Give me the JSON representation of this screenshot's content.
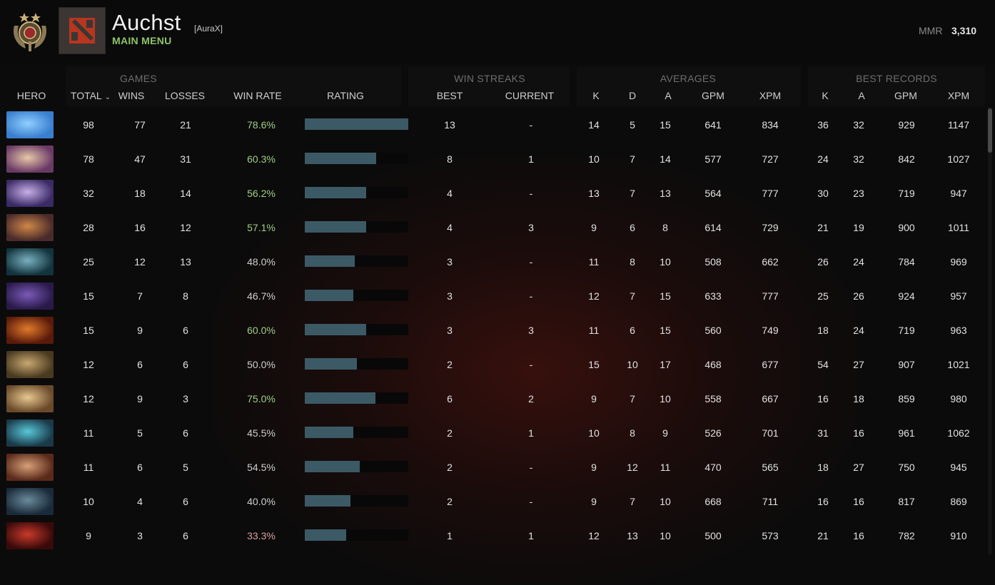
{
  "header": {
    "player_name": "Auchst",
    "team_tag": "[AuraX]",
    "nav_label": "MAIN MENU",
    "mmr_label": "MMR",
    "mmr_value": "3,310"
  },
  "groups": {
    "games": "GAMES",
    "win_streaks": "WIN STREAKS",
    "averages": "AVERAGES",
    "best_records": "BEST RECORDS"
  },
  "columns": {
    "hero": "HERO",
    "total": "TOTAL",
    "wins": "WINS",
    "losses": "LOSSES",
    "win_rate": "WIN RATE",
    "rating": "RATING",
    "best": "BEST",
    "current": "CURRENT",
    "avg_k": "K",
    "avg_d": "D",
    "avg_a": "A",
    "avg_gpm": "GPM",
    "avg_xpm": "XPM",
    "best_k": "K",
    "best_a": "A",
    "best_gpm": "GPM",
    "best_xpm": "XPM"
  },
  "rows": [
    {
      "hero_icon": "blue-hero-portrait-icon",
      "total": "98",
      "wins": "77",
      "losses": "21",
      "win_rate": "78.6%",
      "rating": 1.0,
      "best": "13",
      "current": "-",
      "k": "14",
      "d": "5",
      "a": "15",
      "gpm": "641",
      "xpm": "834",
      "bk": "36",
      "ba": "32",
      "bgpm": "929",
      "bxpm": "1147"
    },
    {
      "hero_icon": "pale-hero-portrait-icon",
      "total": "78",
      "wins": "47",
      "losses": "31",
      "win_rate": "60.3%",
      "rating": 0.69,
      "best": "8",
      "current": "1",
      "k": "10",
      "d": "7",
      "a": "14",
      "gpm": "577",
      "xpm": "727",
      "bk": "24",
      "ba": "32",
      "bgpm": "842",
      "bxpm": "1027"
    },
    {
      "hero_icon": "purple-hero-portrait-icon",
      "total": "32",
      "wins": "18",
      "losses": "14",
      "win_rate": "56.2%",
      "rating": 0.59,
      "best": "4",
      "current": "-",
      "k": "13",
      "d": "7",
      "a": "13",
      "gpm": "564",
      "xpm": "777",
      "bk": "30",
      "ba": "23",
      "bgpm": "719",
      "bxpm": "947"
    },
    {
      "hero_icon": "orange-hero-portrait-icon",
      "total": "28",
      "wins": "16",
      "losses": "12",
      "win_rate": "57.1%",
      "rating": 0.59,
      "best": "4",
      "current": "3",
      "k": "9",
      "d": "6",
      "a": "8",
      "gpm": "614",
      "xpm": "729",
      "bk": "21",
      "ba": "19",
      "bgpm": "900",
      "bxpm": "1011"
    },
    {
      "hero_icon": "teal-hero-portrait-icon",
      "total": "25",
      "wins": "12",
      "losses": "13",
      "win_rate": "48.0%",
      "rating": 0.48,
      "best": "3",
      "current": "-",
      "k": "11",
      "d": "8",
      "a": "10",
      "gpm": "508",
      "xpm": "662",
      "bk": "26",
      "ba": "24",
      "bgpm": "784",
      "bxpm": "969"
    },
    {
      "hero_icon": "violet-hero-portrait-icon",
      "total": "15",
      "wins": "7",
      "losses": "8",
      "win_rate": "46.7%",
      "rating": 0.47,
      "best": "3",
      "current": "-",
      "k": "12",
      "d": "7",
      "a": "15",
      "gpm": "633",
      "xpm": "777",
      "bk": "25",
      "ba": "26",
      "bgpm": "924",
      "bxpm": "957"
    },
    {
      "hero_icon": "fire-hero-portrait-icon",
      "total": "15",
      "wins": "9",
      "losses": "6",
      "win_rate": "60.0%",
      "rating": 0.59,
      "best": "3",
      "current": "3",
      "k": "11",
      "d": "6",
      "a": "15",
      "gpm": "560",
      "xpm": "749",
      "bk": "18",
      "ba": "24",
      "bgpm": "719",
      "bxpm": "963"
    },
    {
      "hero_icon": "tan-hero-portrait-icon",
      "total": "12",
      "wins": "6",
      "losses": "6",
      "win_rate": "50.0%",
      "rating": 0.5,
      "best": "2",
      "current": "-",
      "k": "15",
      "d": "10",
      "a": "17",
      "gpm": "468",
      "xpm": "677",
      "bk": "54",
      "ba": "27",
      "bgpm": "907",
      "bxpm": "1021"
    },
    {
      "hero_icon": "amber-hero-portrait-icon",
      "total": "12",
      "wins": "9",
      "losses": "3",
      "win_rate": "75.0%",
      "rating": 0.68,
      "best": "6",
      "current": "2",
      "k": "9",
      "d": "7",
      "a": "10",
      "gpm": "558",
      "xpm": "667",
      "bk": "16",
      "ba": "18",
      "bgpm": "859",
      "bxpm": "980"
    },
    {
      "hero_icon": "cyan-hero-portrait-icon",
      "total": "11",
      "wins": "5",
      "losses": "6",
      "win_rate": "45.5%",
      "rating": 0.47,
      "best": "2",
      "current": "1",
      "k": "10",
      "d": "8",
      "a": "9",
      "gpm": "526",
      "xpm": "701",
      "bk": "31",
      "ba": "16",
      "bgpm": "961",
      "bxpm": "1062"
    },
    {
      "hero_icon": "brute-hero-portrait-icon",
      "total": "11",
      "wins": "6",
      "losses": "5",
      "win_rate": "54.5%",
      "rating": 0.53,
      "best": "2",
      "current": "-",
      "k": "9",
      "d": "12",
      "a": "11",
      "gpm": "470",
      "xpm": "565",
      "bk": "18",
      "ba": "27",
      "bgpm": "750",
      "bxpm": "945"
    },
    {
      "hero_icon": "shadow-hero-portrait-icon",
      "total": "10",
      "wins": "4",
      "losses": "6",
      "win_rate": "40.0%",
      "rating": 0.44,
      "best": "2",
      "current": "-",
      "k": "9",
      "d": "7",
      "a": "10",
      "gpm": "668",
      "xpm": "711",
      "bk": "16",
      "ba": "16",
      "bgpm": "817",
      "bxpm": "869"
    },
    {
      "hero_icon": "crimson-hero-portrait-icon",
      "total": "9",
      "wins": "3",
      "losses": "6",
      "win_rate": "33.3%",
      "rating": 0.4,
      "best": "1",
      "current": "1",
      "k": "12",
      "d": "13",
      "a": "10",
      "gpm": "500",
      "xpm": "573",
      "bk": "21",
      "ba": "16",
      "bgpm": "782",
      "bxpm": "910"
    }
  ],
  "colors": {
    "accent_green": "#8fc467",
    "rating_bar": "#3c5a66",
    "background": "#0c0b0b"
  }
}
